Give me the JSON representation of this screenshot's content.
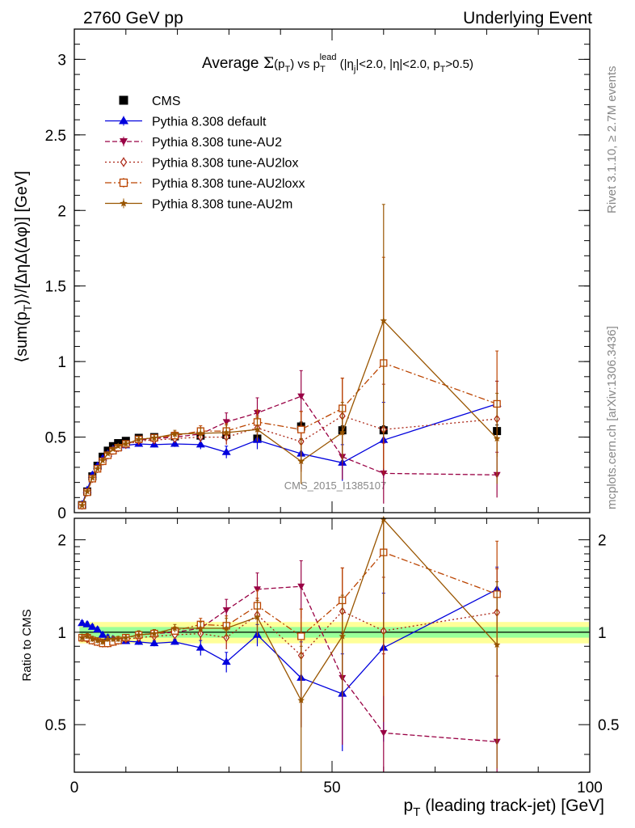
{
  "header": {
    "left": "2760 GeV pp",
    "right": "Underlying Event"
  },
  "side_labels": {
    "rivet": "Rivet 3.1.10, ≥ 2.7M events",
    "mcplots": "mcplots.cern.ch [arXiv:1306.3436]"
  },
  "watermark": "CMS_2015_I1385107",
  "colors": {
    "cms": "#000000",
    "default": "#0000dd",
    "au2": "#990044",
    "au2lox": "#aa2211",
    "au2loxx": "#bb4400",
    "au2m": "#995500",
    "band_outer": "#ffff99",
    "band_inner": "#99ff99"
  },
  "chart_data": [
    {
      "type": "scatter",
      "panel": "main",
      "title_parts": {
        "pre": "Average ",
        "sigma": "Σ",
        "func_open": "(p",
        "func_sub": "T",
        "func_close": ")",
        "vs": " vs p",
        "vs_sub": "T",
        "vs_sup": "lead",
        "cuts": " (|η",
        "cuts_sub": "j",
        "cuts_rest": "|<2.0, |η|<2.0, p",
        "cuts_sub2": "T",
        "cuts_end": ">0.5)"
      },
      "ylabel_parts": {
        "a": "⟨sum(p",
        "a_sub": "T",
        "b": ")⟩/[ΔηΔ(Δφ)] [GeV]"
      },
      "xlim": [
        0,
        100
      ],
      "ylim": [
        0,
        3.2
      ],
      "yticks": [
        0,
        0.5,
        1,
        1.5,
        2,
        2.5,
        3
      ],
      "ytick_labels": [
        "0",
        "0.5",
        "1",
        "1.5",
        "2",
        "2.5",
        "3"
      ],
      "legend_position": "top-left",
      "series": [
        {
          "name": "CMS",
          "key": "cms",
          "marker": "square",
          "line": "none",
          "x": [
            1.5,
            2.5,
            3.5,
            4.5,
            5.5,
            6.5,
            7.5,
            8.5,
            10,
            12.5,
            15.5,
            19.5,
            24.5,
            29.5,
            35.5,
            44,
            52,
            60,
            82
          ],
          "y": [
            0.05,
            0.14,
            0.24,
            0.31,
            0.37,
            0.41,
            0.44,
            0.46,
            0.475,
            0.495,
            0.5,
            0.505,
            0.51,
            0.515,
            0.49,
            0.57,
            0.545,
            0.545,
            0.54
          ],
          "err": [
            0.005,
            0.008,
            0.01,
            0.01,
            0.01,
            0.01,
            0.01,
            0.012,
            0.012,
            0.015,
            0.015,
            0.015,
            0.02,
            0.02,
            0.02,
            0.03,
            0.03,
            0.03,
            0.04
          ]
        },
        {
          "name": "Pythia 8.308 default",
          "key": "default",
          "marker": "triangle-up",
          "line": "solid",
          "x": [
            1.5,
            2.5,
            3.5,
            4.5,
            5.5,
            6.5,
            7.5,
            8.5,
            10,
            12.5,
            15.5,
            19.5,
            24.5,
            29.5,
            35.5,
            44,
            52,
            60,
            82
          ],
          "y": [
            0.055,
            0.15,
            0.25,
            0.31,
            0.36,
            0.39,
            0.42,
            0.43,
            0.445,
            0.455,
            0.45,
            0.455,
            0.45,
            0.4,
            0.48,
            0.39,
            0.33,
            0.48,
            0.72
          ],
          "err": [
            0.003,
            0.005,
            0.006,
            0.008,
            0.01,
            0.01,
            0.01,
            0.012,
            0.012,
            0.015,
            0.018,
            0.02,
            0.03,
            0.04,
            0.06,
            0.1,
            0.12,
            0.25,
            0.15
          ]
        },
        {
          "name": "Pythia 8.308 tune-AU2",
          "key": "au2",
          "marker": "triangle-down",
          "line": "dashed",
          "x": [
            1.5,
            2.5,
            3.5,
            4.5,
            5.5,
            6.5,
            7.5,
            8.5,
            10,
            12.5,
            15.5,
            19.5,
            24.5,
            29.5,
            35.5,
            44,
            52,
            60,
            82
          ],
          "y": [
            0.048,
            0.135,
            0.225,
            0.29,
            0.34,
            0.38,
            0.41,
            0.43,
            0.455,
            0.48,
            0.49,
            0.5,
            0.52,
            0.6,
            0.66,
            0.77,
            0.37,
            0.26,
            0.25
          ],
          "err": [
            0.003,
            0.005,
            0.006,
            0.008,
            0.01,
            0.01,
            0.01,
            0.012,
            0.015,
            0.018,
            0.02,
            0.025,
            0.04,
            0.06,
            0.1,
            0.17,
            0.15,
            0.2,
            0.15
          ]
        },
        {
          "name": "Pythia 8.308 tune-AU2lox",
          "key": "au2lox",
          "marker": "diamond-open",
          "line": "dotted",
          "x": [
            1.5,
            2.5,
            3.5,
            4.5,
            5.5,
            6.5,
            7.5,
            8.5,
            10,
            12.5,
            15.5,
            19.5,
            24.5,
            29.5,
            35.5,
            44,
            52,
            60,
            82
          ],
          "y": [
            0.048,
            0.135,
            0.225,
            0.29,
            0.34,
            0.38,
            0.41,
            0.43,
            0.45,
            0.475,
            0.48,
            0.49,
            0.5,
            0.5,
            0.56,
            0.47,
            0.64,
            0.55,
            0.62
          ],
          "err": [
            0.003,
            0.005,
            0.006,
            0.008,
            0.01,
            0.01,
            0.01,
            0.012,
            0.015,
            0.018,
            0.02,
            0.025,
            0.035,
            0.05,
            0.08,
            0.2,
            0.25,
            0.3,
            0.25
          ]
        },
        {
          "name": "Pythia 8.308 tune-AU2loxx",
          "key": "au2loxx",
          "marker": "square-open",
          "line": "dashdot",
          "x": [
            1.5,
            2.5,
            3.5,
            4.5,
            5.5,
            6.5,
            7.5,
            8.5,
            10,
            12.5,
            15.5,
            19.5,
            24.5,
            29.5,
            35.5,
            44,
            52,
            60,
            82
          ],
          "y": [
            0.048,
            0.135,
            0.225,
            0.29,
            0.34,
            0.38,
            0.41,
            0.43,
            0.455,
            0.485,
            0.495,
            0.51,
            0.54,
            0.54,
            0.6,
            0.55,
            0.69,
            0.99,
            0.72
          ],
          "err": [
            0.003,
            0.005,
            0.006,
            0.008,
            0.01,
            0.01,
            0.01,
            0.012,
            0.015,
            0.018,
            0.02,
            0.025,
            0.035,
            0.05,
            0.08,
            0.12,
            0.2,
            0.7,
            0.35
          ]
        },
        {
          "name": "Pythia 8.308 tune-AU2m",
          "key": "au2m",
          "marker": "star",
          "line": "solid",
          "x": [
            1.5,
            2.5,
            3.5,
            4.5,
            5.5,
            6.5,
            7.5,
            8.5,
            10,
            12.5,
            15.5,
            19.5,
            24.5,
            29.5,
            35.5,
            44,
            52,
            60,
            82
          ],
          "y": [
            0.048,
            0.14,
            0.23,
            0.29,
            0.345,
            0.39,
            0.42,
            0.44,
            0.455,
            0.485,
            0.495,
            0.52,
            0.525,
            0.53,
            0.55,
            0.34,
            0.53,
            1.27,
            0.49
          ],
          "err": [
            0.003,
            0.005,
            0.006,
            0.008,
            0.01,
            0.01,
            0.01,
            0.012,
            0.015,
            0.018,
            0.02,
            0.025,
            0.035,
            0.05,
            0.08,
            0.15,
            0.2,
            0.77,
            0.3
          ]
        }
      ]
    },
    {
      "type": "scatter",
      "panel": "ratio",
      "ylabel": "Ratio to CMS",
      "xlabel_parts": {
        "a": "p",
        "a_sub": "T",
        "b": " (leading track-jet) [GeV]"
      },
      "xlim": [
        0,
        100
      ],
      "ylim": [
        0.35,
        2.35
      ],
      "xticks": [
        0,
        50,
        100
      ],
      "xtick_labels": [
        "0",
        "50",
        "100"
      ],
      "yticks": [
        0.5,
        1,
        2
      ],
      "ytick_labels": [
        "0.5",
        "1",
        "2"
      ],
      "band_x": [
        1,
        100
      ],
      "band_outer": [
        0.92,
        1.08
      ],
      "band_inner": [
        0.96,
        1.04
      ],
      "series": [
        {
          "key": "default",
          "marker": "triangle-up",
          "line": "solid",
          "x": [
            1.5,
            2.5,
            3.5,
            4.5,
            5.5,
            6.5,
            7.5,
            8.5,
            10,
            12.5,
            15.5,
            19.5,
            24.5,
            29.5,
            35.5,
            44,
            52,
            60,
            82
          ],
          "y": [
            1.07,
            1.06,
            1.04,
            1.02,
            0.98,
            0.96,
            0.95,
            0.94,
            0.935,
            0.93,
            0.92,
            0.93,
            0.89,
            0.8,
            0.98,
            0.71,
            0.63,
            0.89,
            1.38
          ],
          "err": [
            0.02,
            0.02,
            0.02,
            0.02,
            0.02,
            0.02,
            0.02,
            0.02,
            0.02,
            0.02,
            0.02,
            0.02,
            0.05,
            0.06,
            0.08,
            0.22,
            0.22,
            0.45,
            0.25
          ]
        },
        {
          "key": "au2",
          "marker": "triangle-down",
          "line": "dashed",
          "x": [
            1.5,
            2.5,
            3.5,
            4.5,
            5.5,
            6.5,
            7.5,
            8.5,
            10,
            12.5,
            15.5,
            19.5,
            24.5,
            29.5,
            35.5,
            44,
            52,
            60,
            82
          ],
          "y": [
            0.96,
            0.95,
            0.94,
            0.93,
            0.92,
            0.92,
            0.93,
            0.94,
            0.96,
            0.98,
            0.99,
            1.0,
            1.03,
            1.18,
            1.38,
            1.41,
            0.71,
            0.47,
            0.44
          ],
          "err": [
            0.02,
            0.02,
            0.02,
            0.02,
            0.02,
            0.02,
            0.02,
            0.02,
            0.02,
            0.03,
            0.03,
            0.03,
            0.05,
            0.1,
            0.18,
            0.3,
            0.28,
            0.38,
            0.28
          ]
        },
        {
          "key": "au2lox",
          "marker": "diamond-open",
          "line": "dotted",
          "x": [
            1.5,
            2.5,
            3.5,
            4.5,
            5.5,
            6.5,
            7.5,
            8.5,
            10,
            12.5,
            15.5,
            19.5,
            24.5,
            29.5,
            35.5,
            44,
            52,
            60,
            82
          ],
          "y": [
            0.96,
            0.95,
            0.94,
            0.93,
            0.92,
            0.92,
            0.93,
            0.94,
            0.95,
            0.96,
            0.97,
            0.98,
            0.99,
            0.96,
            1.14,
            0.84,
            1.17,
            1.01,
            1.16
          ],
          "err": [
            0.02,
            0.02,
            0.02,
            0.02,
            0.02,
            0.02,
            0.02,
            0.02,
            0.02,
            0.03,
            0.03,
            0.03,
            0.05,
            0.08,
            0.15,
            0.35,
            0.45,
            0.5,
            0.45
          ]
        },
        {
          "key": "au2loxx",
          "marker": "square-open",
          "line": "dashdot",
          "x": [
            1.5,
            2.5,
            3.5,
            4.5,
            5.5,
            6.5,
            7.5,
            8.5,
            10,
            12.5,
            15.5,
            19.5,
            24.5,
            29.5,
            35.5,
            44,
            52,
            60,
            82
          ],
          "y": [
            0.96,
            0.96,
            0.94,
            0.93,
            0.92,
            0.92,
            0.93,
            0.94,
            0.96,
            0.98,
            0.99,
            1.01,
            1.06,
            1.05,
            1.22,
            0.97,
            1.27,
            1.82,
            1.33
          ],
          "err": [
            0.02,
            0.02,
            0.02,
            0.02,
            0.02,
            0.02,
            0.02,
            0.02,
            0.02,
            0.03,
            0.03,
            0.03,
            0.05,
            0.08,
            0.15,
            0.22,
            0.35,
            1.2,
            0.65
          ]
        },
        {
          "key": "au2m",
          "marker": "star",
          "line": "solid",
          "x": [
            1.5,
            2.5,
            3.5,
            4.5,
            5.5,
            6.5,
            7.5,
            8.5,
            10,
            12.5,
            15.5,
            19.5,
            24.5,
            29.5,
            35.5,
            44,
            52,
            60,
            82
          ],
          "y": [
            0.96,
            0.97,
            0.95,
            0.94,
            0.93,
            0.95,
            0.95,
            0.95,
            0.96,
            0.98,
            0.99,
            1.03,
            1.03,
            1.03,
            1.12,
            0.6,
            0.97,
            2.33,
            0.91
          ],
          "err": [
            0.02,
            0.02,
            0.02,
            0.02,
            0.02,
            0.02,
            0.02,
            0.02,
            0.02,
            0.03,
            0.03,
            0.03,
            0.05,
            0.08,
            0.15,
            0.3,
            0.35,
            1.4,
            0.55
          ]
        }
      ]
    }
  ]
}
